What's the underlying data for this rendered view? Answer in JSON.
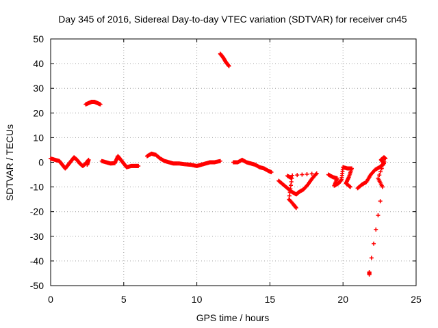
{
  "chart_data": {
    "type": "scatter",
    "title": "Day 345 of 2016, Sidereal Day-to-day VTEC variation (SDTVAR) for receiver cn45",
    "xlabel": "GPS time / hours",
    "ylabel": "SDTVAR / TECUs",
    "xlim": [
      0,
      25
    ],
    "ylim": [
      -50,
      50
    ],
    "xticks": [
      "0",
      "5",
      "10",
      "15",
      "20",
      "25"
    ],
    "yticks": [
      "50",
      "40",
      "30",
      "20",
      "10",
      "0",
      "-10",
      "-20",
      "-30",
      "-40",
      "-50"
    ],
    "grid": true,
    "marker": "+",
    "color": "#ff0000",
    "segments": [
      {
        "name": "seg-a",
        "points": [
          [
            0.0,
            1.5
          ],
          [
            0.3,
            1.0
          ],
          [
            0.6,
            0.5
          ],
          [
            0.8,
            -1.0
          ],
          [
            1.0,
            -2.5
          ],
          [
            1.2,
            -1.0
          ],
          [
            1.4,
            0.5
          ],
          [
            1.6,
            2.0
          ],
          [
            1.8,
            1.0
          ],
          [
            2.0,
            -0.5
          ],
          [
            2.2,
            -1.5
          ],
          [
            2.4,
            -0.5
          ],
          [
            2.6,
            1.0
          ],
          [
            2.5,
            -1.0
          ]
        ]
      },
      {
        "name": "seg-b",
        "points": [
          [
            2.4,
            23.5
          ],
          [
            2.6,
            24.0
          ],
          [
            2.8,
            24.5
          ],
          [
            3.0,
            24.5
          ],
          [
            3.2,
            24.0
          ],
          [
            3.4,
            23.5
          ]
        ]
      },
      {
        "name": "seg-c",
        "points": [
          [
            3.5,
            0.5
          ],
          [
            3.8,
            0.0
          ],
          [
            4.1,
            -0.5
          ],
          [
            4.4,
            -0.3
          ],
          [
            4.6,
            2.5
          ],
          [
            4.8,
            1.0
          ],
          [
            5.0,
            -0.5
          ],
          [
            5.2,
            -2.0
          ],
          [
            5.5,
            -1.5
          ],
          [
            5.8,
            -1.5
          ],
          [
            6.0,
            -1.5
          ]
        ]
      },
      {
        "name": "seg-d",
        "points": [
          [
            6.6,
            2.5
          ],
          [
            6.9,
            3.5
          ],
          [
            7.2,
            3.0
          ],
          [
            7.5,
            1.5
          ],
          [
            7.8,
            0.5
          ],
          [
            8.1,
            0.0
          ],
          [
            8.4,
            -0.5
          ],
          [
            8.8,
            -0.5
          ],
          [
            9.2,
            -0.8
          ],
          [
            9.6,
            -1.0
          ],
          [
            10.0,
            -1.5
          ],
          [
            10.3,
            -1.0
          ],
          [
            10.6,
            -0.5
          ],
          [
            10.9,
            0.0
          ],
          [
            11.2,
            0.0
          ],
          [
            11.6,
            0.5
          ]
        ]
      },
      {
        "name": "seg-e",
        "points": [
          [
            11.6,
            44.0
          ],
          [
            11.8,
            42.5
          ],
          [
            12.0,
            40.5
          ],
          [
            12.2,
            39.0
          ]
        ]
      },
      {
        "name": "seg-f",
        "points": [
          [
            12.5,
            0.0
          ],
          [
            12.8,
            0.0
          ],
          [
            13.1,
            1.0
          ],
          [
            13.4,
            0.0
          ],
          [
            13.7,
            -0.5
          ],
          [
            14.0,
            -1.0
          ],
          [
            14.3,
            -2.0
          ],
          [
            14.6,
            -2.5
          ],
          [
            14.9,
            -3.5
          ],
          [
            15.1,
            -4.0
          ]
        ]
      },
      {
        "name": "seg-g",
        "points": [
          [
            15.6,
            -7.5
          ],
          [
            15.9,
            -9.0
          ],
          [
            16.2,
            -10.5
          ],
          [
            16.5,
            -12.0
          ],
          [
            16.8,
            -13.0
          ],
          [
            17.0,
            -12.0
          ],
          [
            17.3,
            -11.0
          ],
          [
            17.6,
            -9.0
          ],
          [
            17.9,
            -6.5
          ],
          [
            18.2,
            -4.5
          ],
          [
            16.2,
            -5.5
          ],
          [
            16.5,
            -6.5
          ],
          [
            16.3,
            -15.0
          ],
          [
            16.6,
            -17.0
          ],
          [
            16.8,
            -18.5
          ]
        ]
      },
      {
        "name": "seg-h",
        "points": [
          [
            19.0,
            -5.0
          ],
          [
            19.3,
            -6.0
          ],
          [
            19.6,
            -6.5
          ],
          [
            19.4,
            -9.5
          ],
          [
            19.7,
            -8.5
          ],
          [
            19.9,
            -7.0
          ],
          [
            20.0,
            -2.0
          ],
          [
            20.3,
            -2.5
          ],
          [
            20.6,
            -2.5
          ],
          [
            20.4,
            -6.0
          ],
          [
            20.2,
            -8.5
          ],
          [
            20.5,
            -10.0
          ]
        ]
      },
      {
        "name": "seg-i",
        "points": [
          [
            21.0,
            -10.5
          ],
          [
            21.3,
            -9.0
          ],
          [
            21.6,
            -8.0
          ],
          [
            21.9,
            -5.0
          ],
          [
            22.2,
            -3.0
          ],
          [
            22.5,
            -2.0
          ],
          [
            22.8,
            -0.5
          ],
          [
            22.6,
            1.0
          ],
          [
            22.8,
            2.0
          ],
          [
            22.9,
            1.5
          ],
          [
            22.4,
            -6.5
          ],
          [
            22.7,
            -10.0
          ],
          [
            21.8,
            -44.5
          ],
          [
            21.8,
            -45.5
          ]
        ]
      }
    ]
  }
}
